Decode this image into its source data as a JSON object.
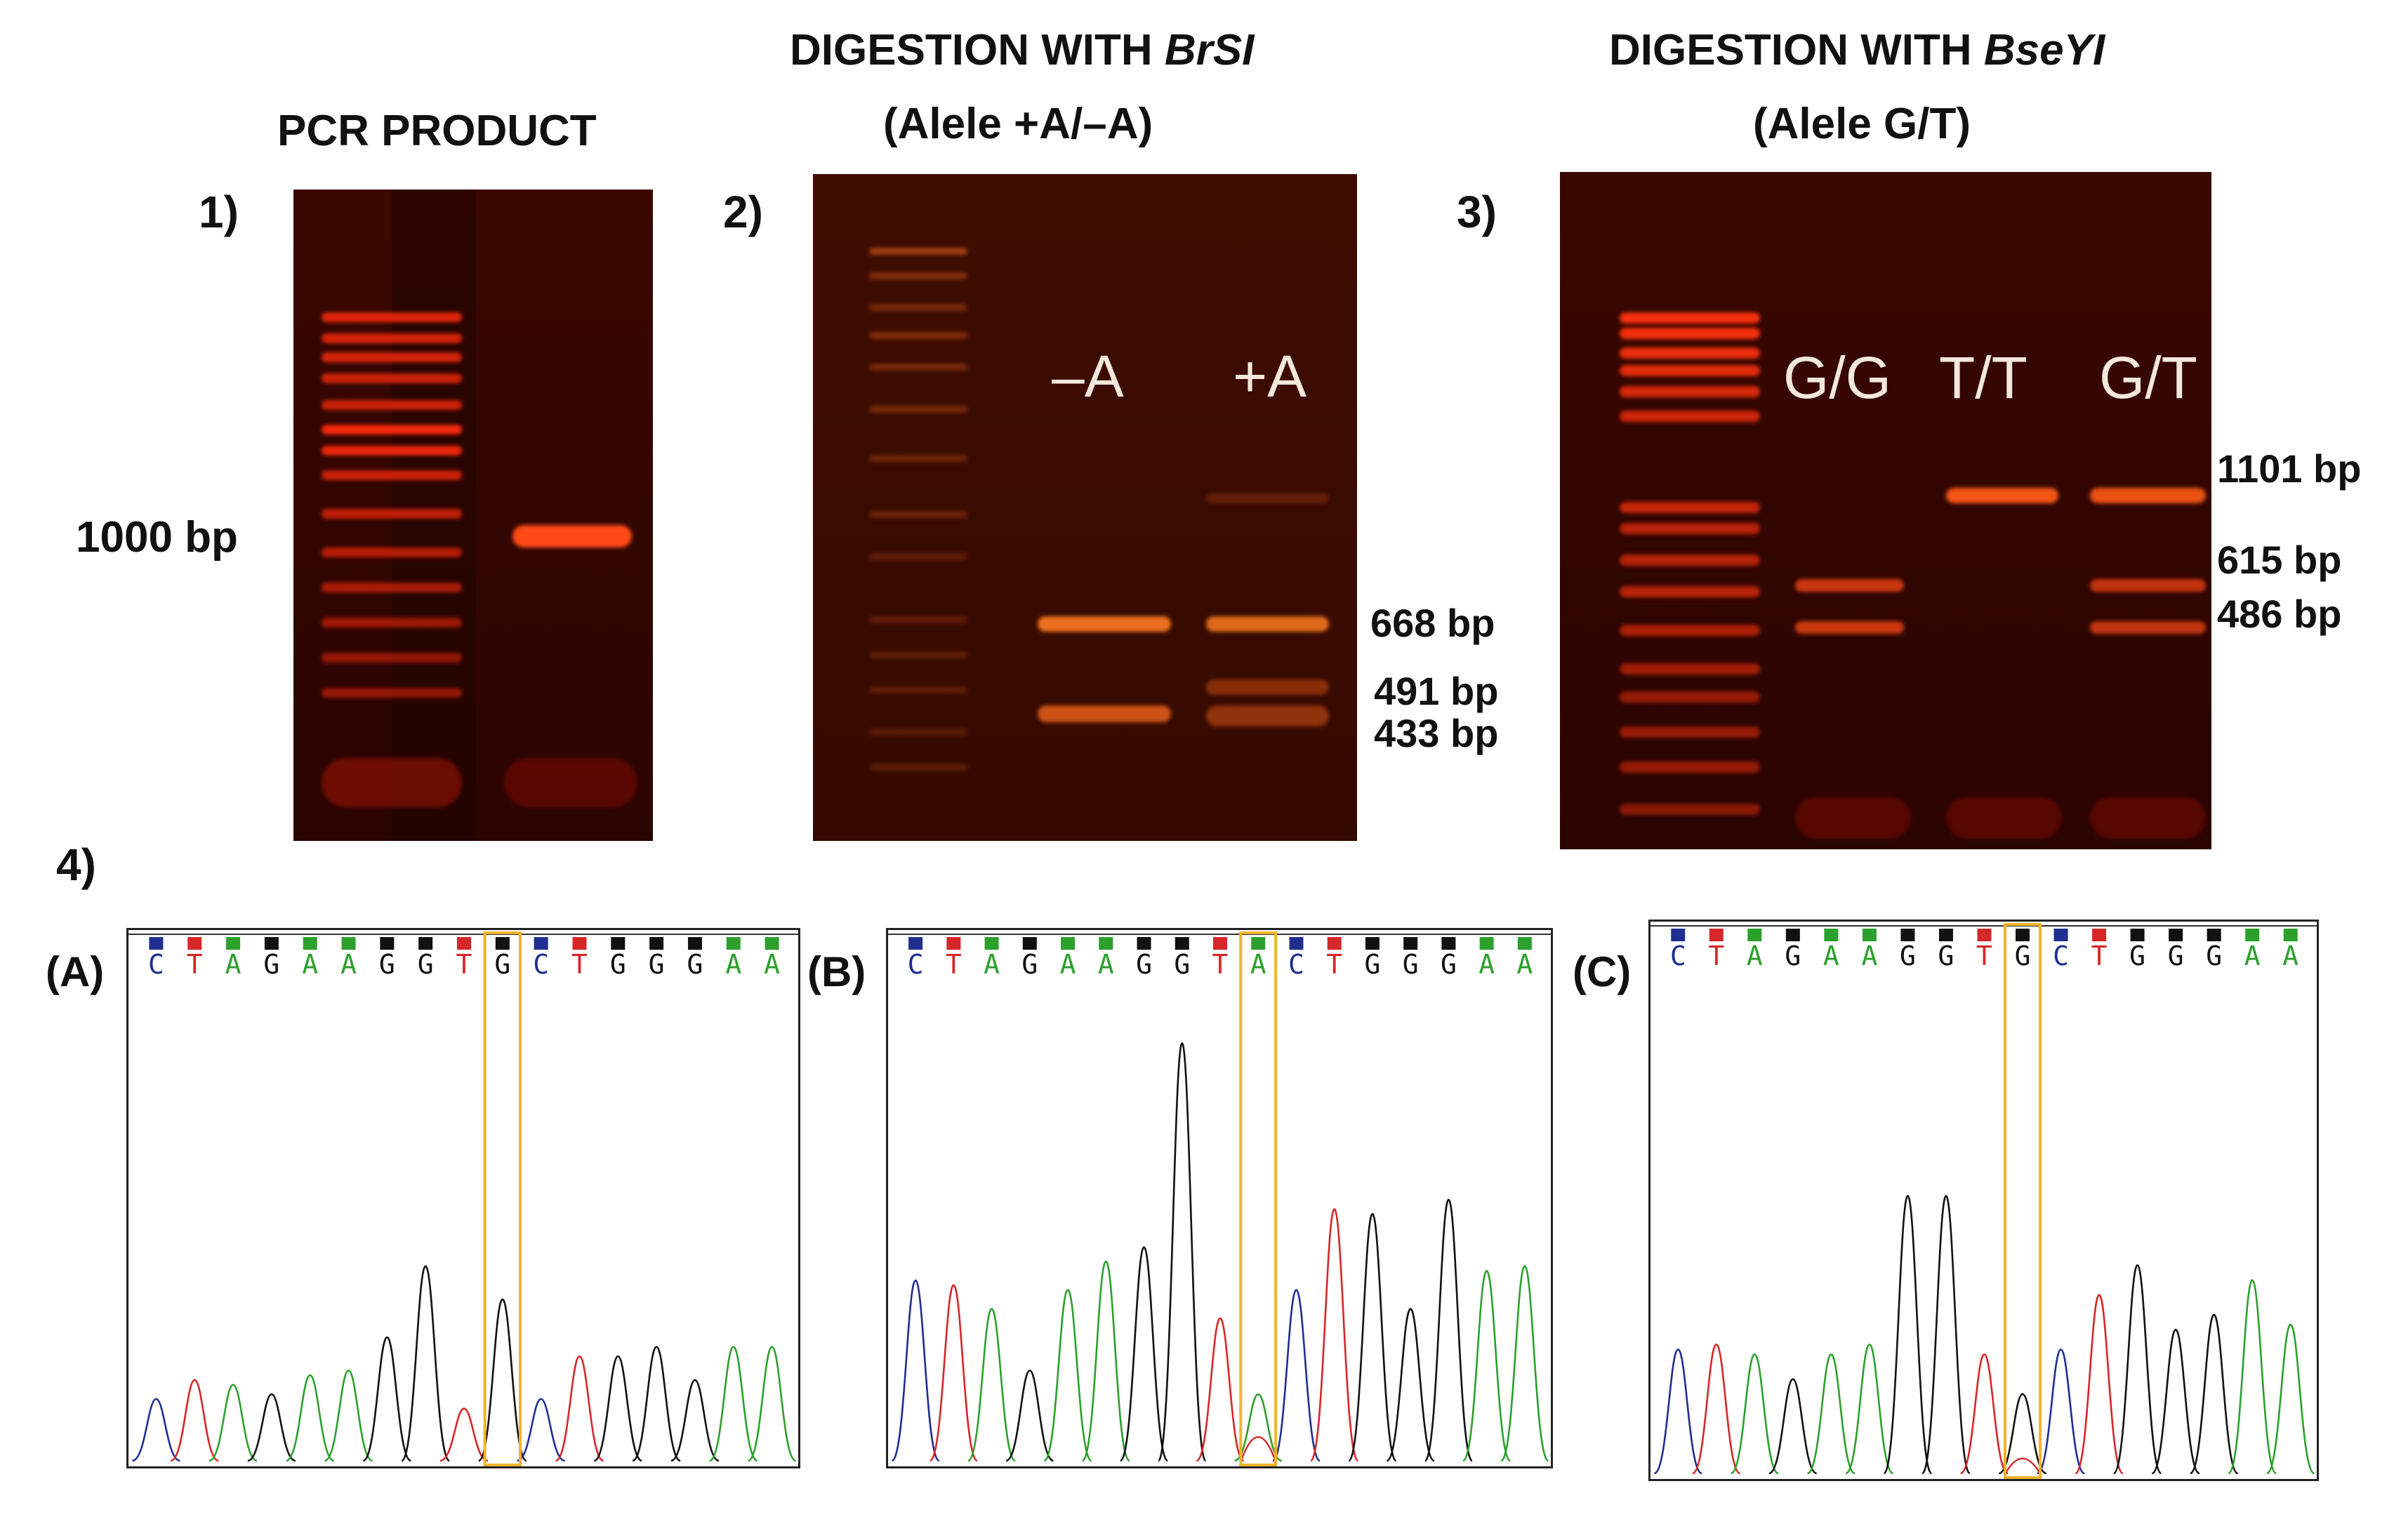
{
  "panels": {
    "p1": {
      "number": "1)",
      "title": "PCR PRODUCT",
      "size_label": "1000 bp"
    },
    "p2": {
      "number": "2)",
      "title_prefix": "DIGESTION WITH ",
      "title_enzyme": "BrSI",
      "subtitle": "(Alele +A/–A)",
      "lane_labels": [
        "–A",
        "+A"
      ],
      "size_labels": [
        "668 bp",
        "491 bp",
        "433 bp"
      ]
    },
    "p3": {
      "number": "3)",
      "title_prefix": "DIGESTION WITH ",
      "title_enzyme": "BseYI",
      "subtitle": "(Alele G/T)",
      "lane_labels": [
        "G/G",
        "T/T",
        "G/T"
      ],
      "size_labels": [
        "1101 bp",
        "615 bp",
        "486 bp"
      ]
    },
    "p4": {
      "number": "4)"
    }
  },
  "chromatograms": [
    {
      "label": "(A)",
      "sequence": [
        "C",
        "T",
        "A",
        "G",
        "A",
        "A",
        "G",
        "G",
        "T",
        "G",
        "C",
        "T",
        "G",
        "G",
        "G",
        "A",
        "A"
      ],
      "highlight_index": 9
    },
    {
      "label": "(B)",
      "sequence": [
        "C",
        "T",
        "A",
        "G",
        "A",
        "A",
        "G",
        "G",
        "T",
        "A",
        "C",
        "T",
        "G",
        "G",
        "G",
        "A",
        "A"
      ],
      "highlight_index": 9
    },
    {
      "label": "(C)",
      "sequence": [
        "C",
        "T",
        "A",
        "G",
        "A",
        "A",
        "G",
        "G",
        "T",
        "G",
        "C",
        "T",
        "G",
        "G",
        "G",
        "A",
        "A"
      ],
      "highlight_index": 9
    }
  ],
  "colors": {
    "A": "#2ca02c",
    "C": "#1f2f8f",
    "G": "#111111",
    "T": "#d62728",
    "highlight": "#f0b429",
    "gel_bg": "#2a0500",
    "band": "#ff3a10"
  }
}
